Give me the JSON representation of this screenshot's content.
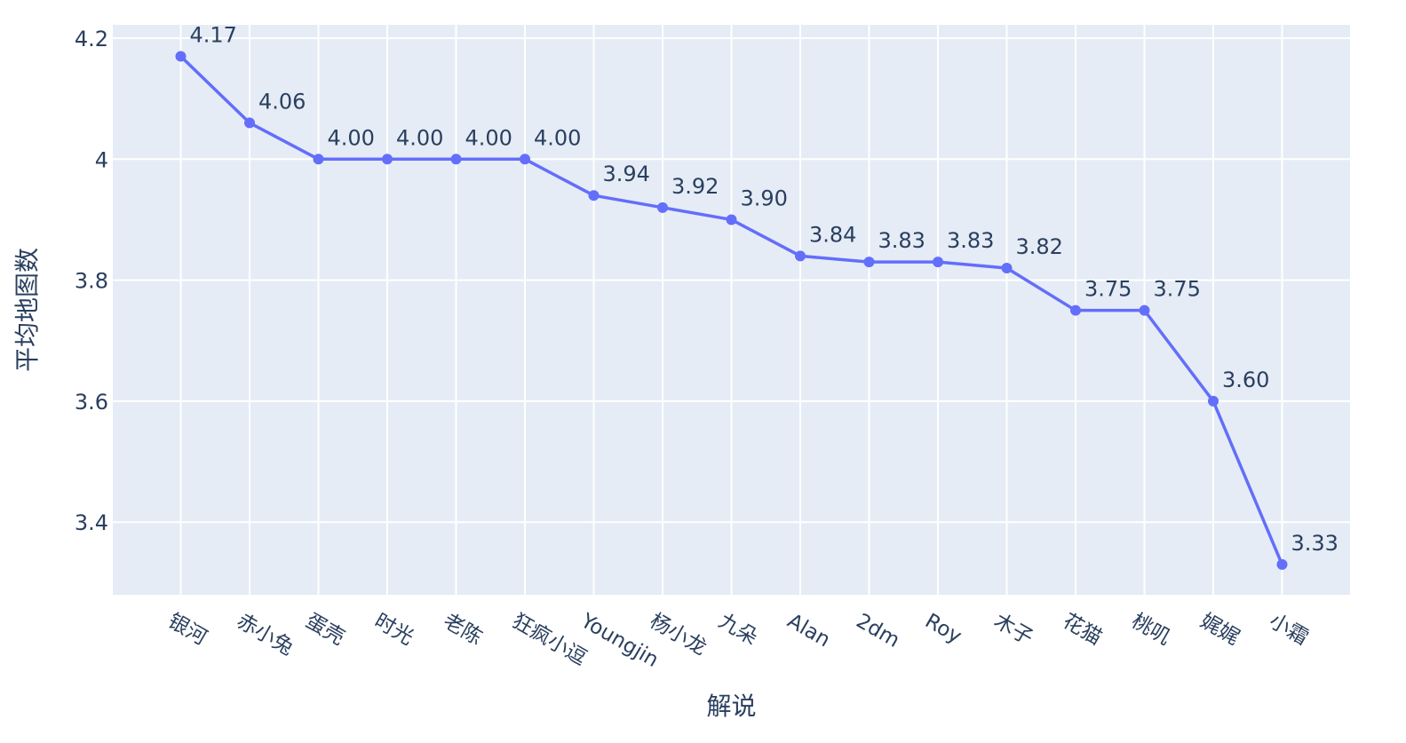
{
  "chart_data": {
    "type": "line",
    "title": "",
    "xlabel": "解说",
    "ylabel": "平均地图数",
    "categories": [
      "银河",
      "赤小兔",
      "蛋壳",
      "时光",
      "老陈",
      "狂疯小逗",
      "Youngjin",
      "杨小龙",
      "九朵",
      "Alan",
      "2dm",
      "Roy",
      "木子",
      "花猫",
      "桃叽",
      "娓娓",
      "小霜"
    ],
    "series": [
      {
        "name": "",
        "values": [
          4.17,
          4.06,
          4.0,
          4.0,
          4.0,
          4.0,
          3.94,
          3.92,
          3.9,
          3.84,
          3.83,
          3.83,
          3.82,
          3.75,
          3.75,
          3.6,
          3.33
        ],
        "labels": [
          "4.17",
          "4.06",
          "4.00",
          "4.00",
          "4.00",
          "4.00",
          "3.94",
          "3.92",
          "3.90",
          "3.84",
          "3.83",
          "3.83",
          "3.82",
          "3.75",
          "3.75",
          "3.60",
          "3.33"
        ]
      }
    ],
    "ylim": [
      3.28,
      4.222
    ],
    "yticks": [
      3.4,
      3.6,
      3.8,
      4,
      4.2
    ],
    "ytick_labels": [
      "3.4",
      "3.6",
      "3.8",
      "4",
      "4.2"
    ],
    "grid": true,
    "colors": {
      "line": "#636efa",
      "plot_bg": "#e5ecf6",
      "grid": "#ffffff",
      "text": "#2a3f5f"
    }
  }
}
